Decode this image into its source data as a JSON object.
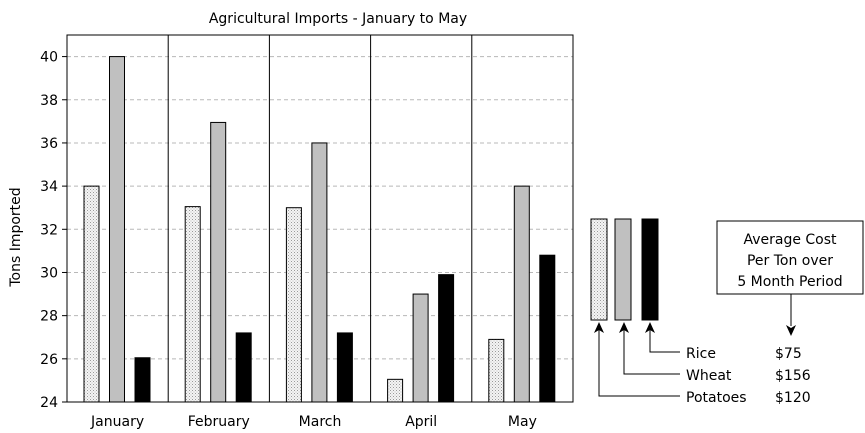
{
  "chart_data": {
    "type": "bar",
    "title": "Agricultural Imports - January to May",
    "xlabel": "",
    "ylabel": "Tons Imported",
    "ylim": [
      24,
      41
    ],
    "yticks": [
      24,
      26,
      28,
      30,
      32,
      34,
      36,
      38,
      40
    ],
    "grid": "horizontal dashed",
    "categories": [
      "January",
      "February",
      "March",
      "April",
      "May"
    ],
    "series": [
      {
        "name": "Potatoes",
        "values": [
          34,
          33.05,
          33,
          25.05,
          26.9
        ],
        "color": "#f2f2f2",
        "pattern": "dotted"
      },
      {
        "name": "Wheat",
        "values": [
          40,
          36.95,
          36,
          29,
          34
        ],
        "color": "#c0c0c0"
      },
      {
        "name": "Rice",
        "values": [
          26.05,
          27.2,
          27.2,
          29.9,
          30.8
        ],
        "color": "#000000"
      }
    ],
    "legend": {
      "position": "right",
      "cost_box": "Average Cost\nPer Ton over\n5 Month Period",
      "cost_box_lines": [
        "Average Cost",
        "Per Ton over",
        "5 Month Period"
      ],
      "items": [
        {
          "name": "Rice",
          "cost": "$75"
        },
        {
          "name": "Wheat",
          "cost": "$156"
        },
        {
          "name": "Potatoes",
          "cost": "$120"
        }
      ]
    }
  }
}
